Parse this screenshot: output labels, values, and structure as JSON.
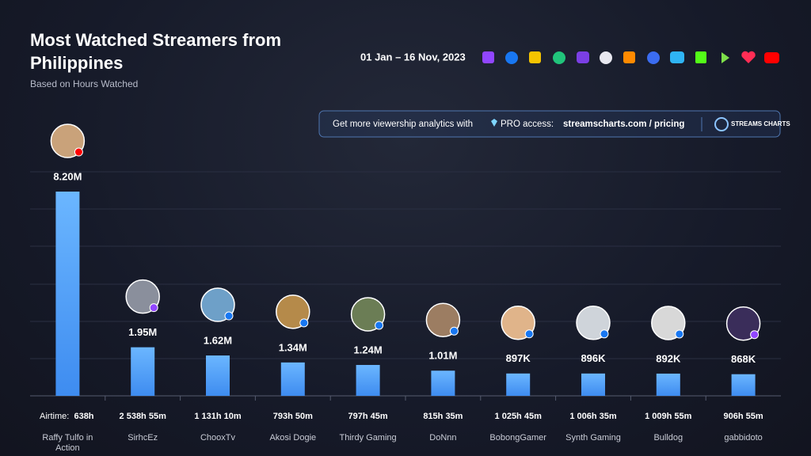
{
  "chart_data": {
    "type": "bar",
    "title": "Most Watched Streamers from Philippines",
    "subtitle": "Based on Hours Watched",
    "date_range": "01 Jan – 16 Nov, 2023",
    "banner": {
      "text": "Get more viewership analytics with",
      "pro": "PRO access:",
      "link": "streamscharts.com / pricing",
      "logo": "STREAMS CHARTS"
    },
    "categories": [
      "Raffy Tulfo in Action",
      "SirhcEz",
      "ChooxTv",
      "Akosi Dogie",
      "Thirdy Gaming",
      "DoNnn",
      "BobongGamer",
      "Synth Gaming",
      "Bulldog",
      "gabbidoto"
    ],
    "values": [
      8200000,
      1950000,
      1620000,
      1340000,
      1240000,
      1010000,
      897000,
      896000,
      892000,
      868000
    ],
    "value_labels": [
      "8.20M",
      "1.95M",
      "1.62M",
      "1.34M",
      "1.24M",
      "1.01M",
      "897K",
      "896K",
      "892K",
      "868K"
    ],
    "airtime_label": "Airtime:",
    "airtime": [
      "638h",
      "2 538h 55m",
      "1 131h 10m",
      "793h 50m",
      "797h 45m",
      "815h 35m",
      "1 025h 45m",
      "1 006h 35m",
      "1 009h 55m",
      "906h 55m"
    ],
    "color": "#5aa8ff",
    "ylim": [
      0,
      10000000
    ]
  }
}
